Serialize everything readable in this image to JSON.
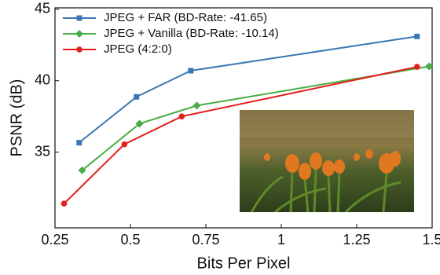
{
  "chart_data": {
    "type": "line",
    "x_label": "Bits Per Pixel",
    "y_label": "PSNR (dB)",
    "xlim": [
      0.25,
      1.5
    ],
    "xticks": [
      0.25,
      0.5,
      0.75,
      1,
      1.25,
      1.5
    ],
    "ylim": [
      29.7,
      45.1
    ],
    "yticks": [
      35,
      40,
      45
    ],
    "legend": "upper left",
    "series": [
      {
        "name": "JPEG + FAR (BD-Rate: -41.65)",
        "color": "#3a78b5",
        "marker": "square",
        "x": [
          0.33,
          0.52,
          0.7,
          1.45
        ],
        "values": [
          35.66,
          38.87,
          40.7,
          43.1
        ]
      },
      {
        "name": "JPEG + Vanilla (BD-Rate: -10.14)",
        "color": "#4aac45",
        "marker": "diamond",
        "x": [
          0.34,
          0.53,
          0.72,
          1.49
        ],
        "values": [
          33.73,
          36.99,
          38.26,
          41.0
        ]
      },
      {
        "name": "JPEG (4:2:0)",
        "color": "#e3201c",
        "marker": "circle",
        "x": [
          0.28,
          0.48,
          0.67,
          1.45
        ],
        "values": [
          31.4,
          35.55,
          37.5,
          40.97
        ]
      }
    ]
  }
}
